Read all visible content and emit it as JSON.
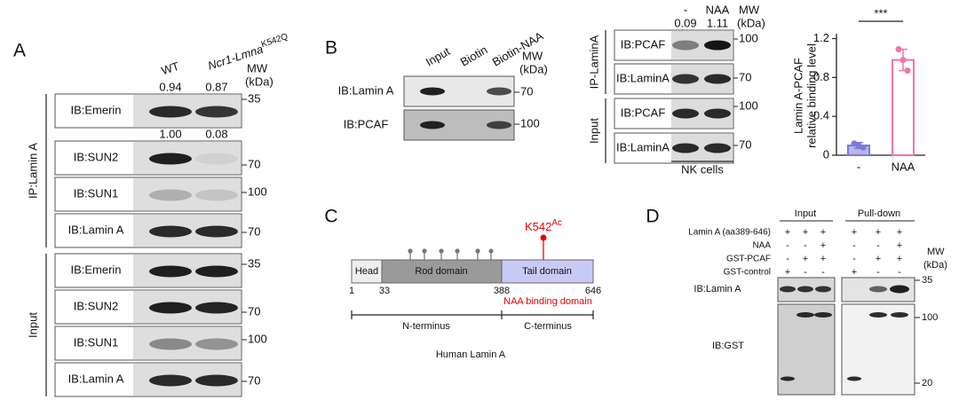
{
  "panel_a": {
    "label": "A",
    "columns": [
      "WT",
      "Ncr1-Lmna"
    ],
    "column_superscript": "K542Q",
    "mw_header": [
      "MW",
      "(kDa)"
    ],
    "quantification": [
      [
        "0.94",
        "0.87"
      ],
      [
        "1.00",
        "0.08"
      ]
    ],
    "groups": [
      {
        "name": "IP:Lamin A",
        "rows": [
          {
            "label": "IB:Emerin",
            "mw": "35"
          },
          {
            "label": "IB:SUN2",
            "mw": "70"
          },
          {
            "label": "IB:SUN1",
            "mw": "100"
          },
          {
            "label": "IB:Lamin A",
            "mw": "70"
          }
        ]
      },
      {
        "name": "Input",
        "rows": [
          {
            "label": "IB:Emerin",
            "mw": "35"
          },
          {
            "label": "IB:SUN2",
            "mw": "70"
          },
          {
            "label": "IB:SUN1",
            "mw": "100"
          },
          {
            "label": "IB:Lamin A",
            "mw": "70"
          }
        ]
      }
    ]
  },
  "panel_b": {
    "label": "B",
    "columns": [
      "Input",
      "Biotin",
      "Biotin-NAA"
    ],
    "mw_header": [
      "MW",
      "(kDa)"
    ],
    "rows": [
      {
        "label": "IB:Lamin A",
        "mw": "70"
      },
      {
        "label": "IB:PCAF",
        "mw": "100"
      }
    ]
  },
  "panel_b_ip": {
    "columns": [
      "-",
      "NAA"
    ],
    "quantification": [
      "0.09",
      "1.11"
    ],
    "mw_header": [
      "MW",
      "(kDa)"
    ],
    "groups": [
      {
        "name": "IP-LaminA",
        "rows": [
          {
            "label": "IB:PCAF",
            "mw": "100"
          },
          {
            "label": "IB:LaminA",
            "mw": "70"
          }
        ]
      },
      {
        "name": "Input",
        "rows": [
          {
            "label": "IB:PCAF",
            "mw": "100"
          },
          {
            "label": "IB:LaminA",
            "mw": "70"
          }
        ]
      }
    ],
    "cells": "NK cells"
  },
  "chart_data": {
    "type": "bar",
    "ylabel": [
      "Lamin A-PCAF",
      "relative binding level"
    ],
    "categories": [
      "-",
      "NAA"
    ],
    "values": [
      0.1,
      0.98
    ],
    "errors": [
      0.03,
      0.11
    ],
    "points": [
      [
        0.12,
        0.1,
        0.08
      ],
      [
        1.09,
        0.98,
        0.87
      ]
    ],
    "colors": [
      "#7b7bd6",
      "#f075a6"
    ],
    "ylim": [
      0,
      1.25
    ],
    "yticks": [
      0,
      0.4,
      0.8,
      1.2
    ],
    "significance": "***"
  },
  "panel_c": {
    "label": "C",
    "domains": [
      "Head",
      "Rod domain",
      "Tail domain"
    ],
    "positions": [
      "1",
      "33",
      "388",
      "646"
    ],
    "site": "K542",
    "site_modification": "Ac",
    "site_note": "NAA binding domain",
    "termini": [
      "N-terminus",
      "C-terminus"
    ],
    "protein": "Human Lamin A"
  },
  "panel_d": {
    "label": "D",
    "sections": [
      "Input",
      "Pull-down"
    ],
    "conditions": [
      "Lamin A (aa389-646)",
      "NAA",
      "GST-PCAF",
      "GST-control"
    ],
    "input_signs": [
      [
        "+",
        "+",
        "+"
      ],
      [
        "-",
        "-",
        "+"
      ],
      [
        "-",
        "+",
        "+"
      ],
      [
        "+",
        "-",
        "-"
      ]
    ],
    "pulldown_signs": [
      [
        "+",
        "+",
        "+"
      ],
      [
        "-",
        "-",
        "+"
      ],
      [
        "-",
        "+",
        "+"
      ],
      [
        "+",
        "-",
        "-"
      ]
    ],
    "mw_header": [
      "MW",
      "(kDa)"
    ],
    "blots": [
      {
        "label": "IB:Lamin A",
        "mw": [
          "35"
        ]
      },
      {
        "label": "IB:GST",
        "mw": [
          "100",
          "20"
        ]
      }
    ]
  }
}
